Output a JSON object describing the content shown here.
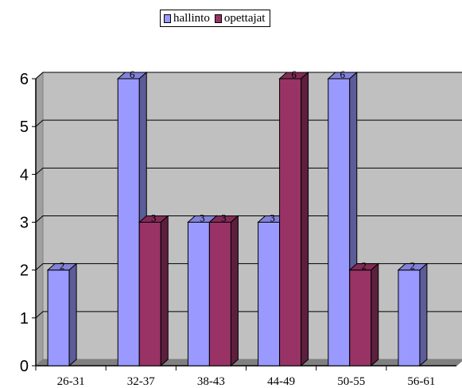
{
  "chart_data": {
    "type": "bar",
    "categories": [
      "26-31",
      "32-37",
      "38-43",
      "44-49",
      "50-55",
      "56-61"
    ],
    "series": [
      {
        "name": "hallinto",
        "values": [
          2,
          6,
          3,
          3,
          6,
          2
        ],
        "color": "#9999ff"
      },
      {
        "name": "opettajat",
        "values": [
          null,
          3,
          3,
          6,
          2,
          null
        ],
        "color": "#993366"
      }
    ],
    "ylim": [
      0,
      6
    ],
    "yticks": [
      0,
      1,
      2,
      3,
      4,
      5,
      6
    ],
    "grid": true,
    "legend_position": "top-center",
    "plot_background": "#c0c0c0"
  }
}
